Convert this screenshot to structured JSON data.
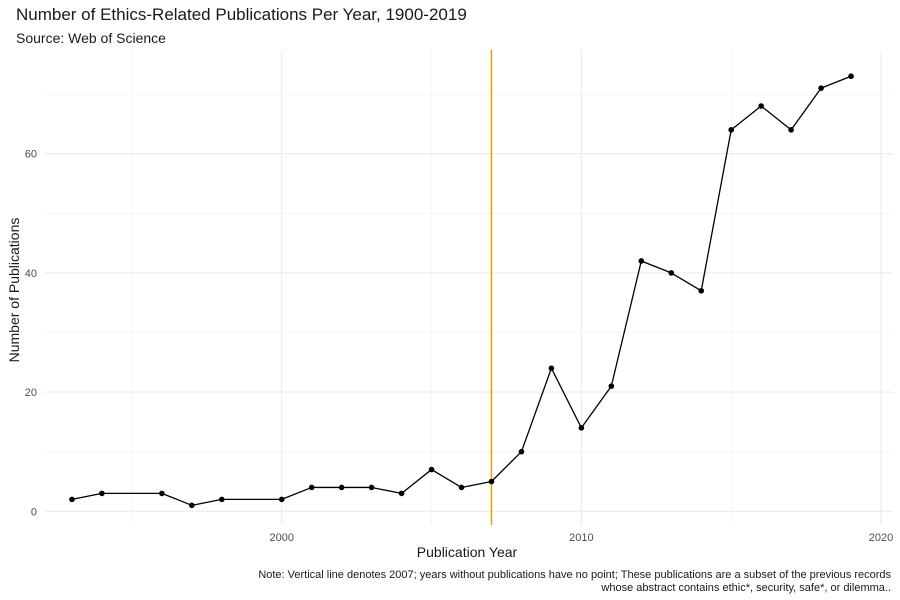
{
  "header": {
    "title": "Number of Ethics-Related Publications Per Year, 1900-2019",
    "subtitle": "Source: Web of Science"
  },
  "caption": {
    "line1": "Note: Vertical line denotes 2007; years without publications have no point; These publications are a subset of the previous records",
    "line2": "whose abstract contains ethic*, security, safe*, or dilemma.."
  },
  "colors": {
    "line": "#000000",
    "point": "#000000",
    "reference_line": "#E69F00",
    "grid_major": "#ebebeb",
    "grid_minor": "#f3f3f3"
  },
  "chart_data": {
    "type": "line",
    "title": "Number of Ethics-Related Publications Per Year, 1900-2019",
    "subtitle": "Source: Web of Science",
    "xlabel": "Publication Year",
    "ylabel": "Number of Publications",
    "xlim": [
      1992.1,
      2020.4
    ],
    "ylim": [
      -2.3,
      77.4
    ],
    "x_ticks": [
      2000,
      2010,
      2020
    ],
    "y_ticks": [
      0,
      20,
      40,
      60
    ],
    "reference_line_x": 2007,
    "grid": true,
    "series": [
      {
        "x": [
          1993,
          1994,
          1996,
          1997,
          1998,
          2000,
          2001,
          2002,
          2003,
          2004,
          2005,
          2006,
          2007,
          2008,
          2009,
          2010,
          2011,
          2012,
          2013,
          2014,
          2015,
          2016,
          2017,
          2018,
          2019
        ],
        "values": [
          2,
          3,
          3,
          1,
          2,
          2,
          4,
          4,
          4,
          3,
          7,
          4,
          5,
          10,
          24,
          14,
          21,
          42,
          40,
          37,
          64,
          68,
          64,
          71,
          73
        ]
      }
    ]
  }
}
